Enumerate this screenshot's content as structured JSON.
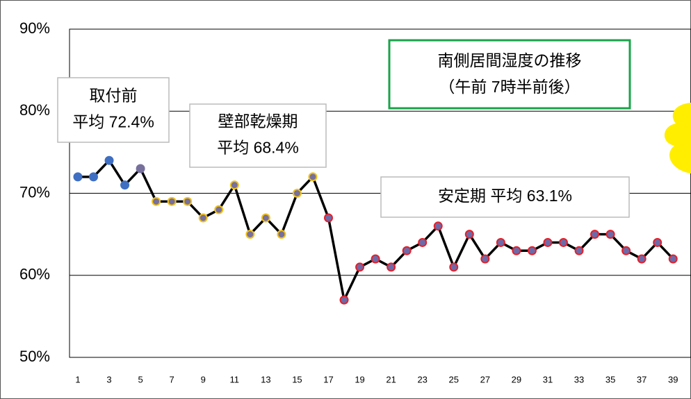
{
  "chart_data": {
    "type": "line",
    "title": "南側居間湿度の推移",
    "subtitle": "（午前 7時半前後）",
    "categories": [
      1,
      null,
      3,
      null,
      5,
      null,
      7,
      null,
      9,
      null,
      11,
      null,
      13,
      null,
      15,
      null,
      17,
      null,
      19,
      null,
      21,
      null,
      23,
      null,
      25,
      null,
      27,
      null,
      29,
      null,
      31,
      null,
      33,
      null,
      35,
      null,
      37,
      null,
      39
    ],
    "series": [
      {
        "color": "#000000",
        "values": [
          72,
          72,
          74,
          71,
          73,
          69,
          69,
          69,
          67,
          68,
          71,
          65,
          67,
          65,
          70,
          72,
          67,
          57,
          61,
          62,
          61,
          63,
          64,
          66,
          61,
          65,
          62,
          64,
          63,
          63,
          64,
          64,
          63,
          65,
          65,
          63,
          62,
          64,
          62
        ],
        "marker_fill_colors": [
          "#3f6fc2",
          "#3f6fc2",
          "#3f6fc2",
          "#3f6fc2",
          "#77709c",
          "#77709c",
          "#77709c",
          "#77709c",
          "#77709c",
          "#77709c",
          "#77709c",
          "#77709c",
          "#77709c",
          "#77709c",
          "#77709c",
          "#77709c",
          "#6e6aa8",
          "#6e6aa8",
          "#6e6aa8",
          "#6e6aa8",
          "#6e6aa8",
          "#6e6aa8",
          "#6e6aa8",
          "#6e6aa8",
          "#6e6aa8",
          "#6e6aa8",
          "#6e6aa8",
          "#6e6aa8",
          "#6e6aa8",
          "#6e6aa8",
          "#6e6aa8",
          "#6e6aa8",
          "#6e6aa8",
          "#6e6aa8",
          "#6e6aa8",
          "#6e6aa8",
          "#6e6aa8",
          "#6e6aa8",
          "#6e6aa8"
        ],
        "marker_edge_colors": [
          "#3f6fc2",
          "#3f6fc2",
          "#3f6fc2",
          "#3f6fc2",
          "#77709c",
          "#f2c21b",
          "#f2c21b",
          "#f2c21b",
          "#f2c21b",
          "#f2c21b",
          "#f2c21b",
          "#f2c21b",
          "#f2c21b",
          "#f2c21b",
          "#f2c21b",
          "#f2c21b",
          "#e3202b",
          "#e3202b",
          "#e3202b",
          "#e3202b",
          "#e3202b",
          "#e3202b",
          "#e3202b",
          "#e3202b",
          "#e3202b",
          "#e3202b",
          "#e3202b",
          "#e3202b",
          "#e3202b",
          "#e3202b",
          "#e3202b",
          "#e3202b",
          "#e3202b",
          "#e3202b",
          "#e3202b",
          "#e3202b",
          "#e3202b",
          "#e3202b",
          "#e3202b"
        ]
      }
    ],
    "ylim": [
      50,
      90
    ],
    "yticks": [
      {
        "value": 50,
        "label": "50%"
      },
      {
        "value": 60,
        "label": "60%"
      },
      {
        "value": 70,
        "label": "70%"
      },
      {
        "value": 80,
        "label": "80%"
      },
      {
        "value": 90,
        "label": "90%"
      }
    ],
    "grid": true,
    "annotations": [
      {
        "lines": [
          "取付前",
          "平均 72.4%"
        ]
      },
      {
        "lines": [
          "壁部乾燥期",
          "平均 68.4%"
        ]
      },
      {
        "lines": [
          "安定期 平均 63.1%"
        ]
      }
    ]
  }
}
